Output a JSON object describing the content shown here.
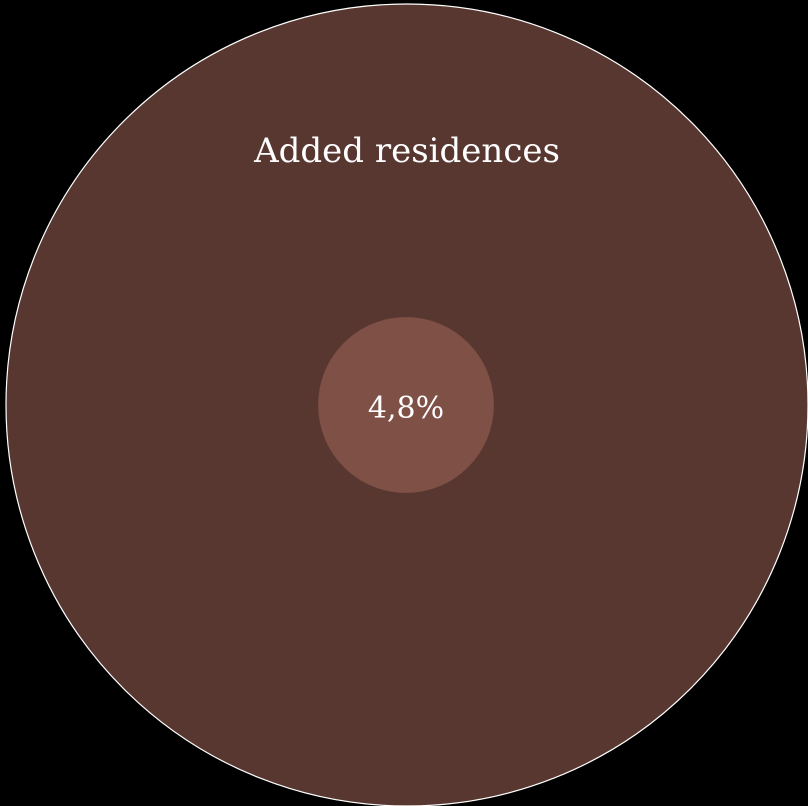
{
  "chart_data": {
    "type": "bubble",
    "title": "Added residences",
    "series": [
      {
        "value_label": "4,8%",
        "share_percent": 4.8
      }
    ],
    "colors": {
      "background": "#000000",
      "outer_circle": "#583730",
      "outer_stroke": "#ffffff",
      "inner_circle": "#7e5046",
      "text": "#ffffff"
    }
  }
}
